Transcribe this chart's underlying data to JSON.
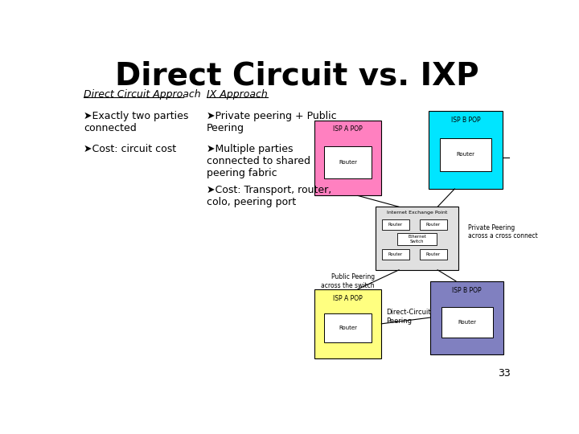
{
  "title": "Direct Circuit vs. IXP",
  "title_fontsize": 28,
  "title_fontweight": "bold",
  "bg_color": "#ffffff",
  "col1_header": "Direct Circuit Approach",
  "col2_header": "IX Approach",
  "col1_bullets": [
    "➤Exactly two parties\nconnected",
    "➤Cost: circuit cost"
  ],
  "col2_bullets": [
    "➤Private peering + Public\nPeering",
    "➤Multiple parties\nconnected to shared\npeering fabric",
    "➤Cost: Transport, router,\ncolo, peering port"
  ],
  "page_num": "33",
  "isp_a_top_color": "#ff80c0",
  "isp_b_top_color": "#00e5ff",
  "isp_a_bot_color": "#ffff80",
  "isp_b_bot_color": "#8080c0",
  "ixp_center_color": "#e0e0e0",
  "router_box_color": "#ffffff"
}
